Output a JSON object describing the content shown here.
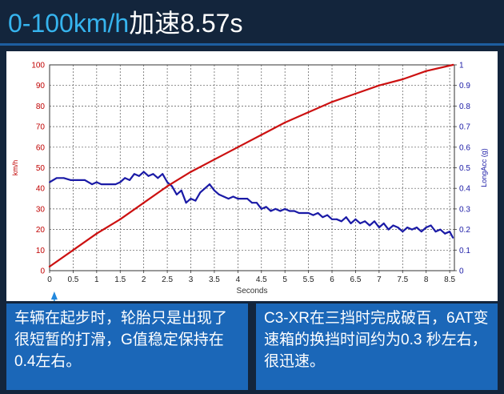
{
  "header": {
    "title_accent": "0-100km/h",
    "title_rest": "加速8.57s"
  },
  "captions": {
    "left": "车辆在起步时，轮胎只是出现了很短暂的打滑，G值稳定保持在0.4左右。",
    "right": "C3-XR在三挡时完成破百，6AT变速箱的换挡时间约为0.3 秒左右，很迅速。"
  },
  "colors": {
    "speed_series": "#cc1111",
    "acc_series": "#1a1aa6",
    "left_axis_text": "#c00000",
    "right_axis_text": "#1a1aa6",
    "grid": "#555555",
    "background": "#13253c",
    "caption_box": "#1b67b8",
    "title_accent": "#36b4ee",
    "marker": "#2288dd"
  },
  "chart_data": {
    "type": "line",
    "xlabel": "Seconds",
    "ylabel_left": "km/h",
    "ylabel_right": "LongAcc (g)",
    "xlim": [
      0,
      8.6
    ],
    "ylim_left": [
      0,
      100
    ],
    "ylim_right": [
      0,
      1
    ],
    "grid": true,
    "x_ticks": [
      "0",
      "0.5",
      "1",
      "1.5",
      "2",
      "2.5",
      "3",
      "3.5",
      "4",
      "4.5",
      "5",
      "5.5",
      "6",
      "6.5",
      "7",
      "7.5",
      "8",
      "8.5"
    ],
    "y_left_ticks": [
      "0",
      "10",
      "20",
      "30",
      "40",
      "50",
      "60",
      "70",
      "80",
      "90",
      "100"
    ],
    "y_right_ticks": [
      "0",
      "0.1",
      "0.2",
      "0.3",
      "0.4",
      "0.5",
      "0.6",
      "0.7",
      "0.8",
      "0.9",
      "1"
    ],
    "series": [
      {
        "axis": "left",
        "x": [
          0,
          0.5,
          1,
          1.5,
          2,
          2.5,
          3,
          3.5,
          4,
          4.5,
          5,
          5.5,
          6,
          6.5,
          7,
          7.5,
          8,
          8.57
        ],
        "values": [
          2,
          10,
          18,
          25,
          33,
          41,
          48,
          54,
          60,
          66,
          72,
          77,
          82,
          86,
          90,
          93,
          97,
          100
        ]
      },
      {
        "axis": "right",
        "x": [
          0,
          0.15,
          0.3,
          0.45,
          0.6,
          0.75,
          0.9,
          1.0,
          1.1,
          1.25,
          1.4,
          1.5,
          1.6,
          1.7,
          1.8,
          1.9,
          2.0,
          2.1,
          2.2,
          2.3,
          2.4,
          2.5,
          2.6,
          2.7,
          2.8,
          2.9,
          3.0,
          3.1,
          3.2,
          3.3,
          3.4,
          3.5,
          3.6,
          3.7,
          3.8,
          3.9,
          4.0,
          4.1,
          4.2,
          4.3,
          4.4,
          4.5,
          4.6,
          4.7,
          4.8,
          4.9,
          5.0,
          5.1,
          5.2,
          5.3,
          5.4,
          5.5,
          5.6,
          5.7,
          5.8,
          5.9,
          6.0,
          6.1,
          6.2,
          6.3,
          6.4,
          6.5,
          6.6,
          6.7,
          6.8,
          6.9,
          7.0,
          7.1,
          7.2,
          7.3,
          7.4,
          7.5,
          7.6,
          7.7,
          7.8,
          7.9,
          8.0,
          8.1,
          8.2,
          8.3,
          8.4,
          8.5,
          8.57
        ],
        "values": [
          0.43,
          0.45,
          0.45,
          0.44,
          0.44,
          0.44,
          0.42,
          0.43,
          0.42,
          0.42,
          0.42,
          0.43,
          0.45,
          0.44,
          0.47,
          0.46,
          0.48,
          0.46,
          0.47,
          0.45,
          0.47,
          0.43,
          0.41,
          0.37,
          0.39,
          0.33,
          0.35,
          0.34,
          0.38,
          0.4,
          0.42,
          0.39,
          0.37,
          0.36,
          0.35,
          0.36,
          0.35,
          0.35,
          0.35,
          0.33,
          0.33,
          0.3,
          0.31,
          0.29,
          0.3,
          0.29,
          0.3,
          0.29,
          0.29,
          0.28,
          0.28,
          0.28,
          0.27,
          0.28,
          0.26,
          0.27,
          0.25,
          0.25,
          0.24,
          0.26,
          0.23,
          0.25,
          0.23,
          0.24,
          0.22,
          0.24,
          0.21,
          0.23,
          0.2,
          0.22,
          0.21,
          0.19,
          0.21,
          0.2,
          0.21,
          0.19,
          0.21,
          0.22,
          0.19,
          0.2,
          0.18,
          0.19,
          0.16
        ]
      }
    ]
  }
}
